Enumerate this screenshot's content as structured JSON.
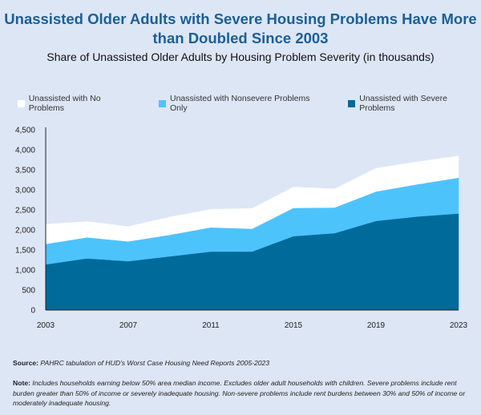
{
  "chart_data": {
    "type": "area",
    "stacked": true,
    "title": "Unassisted Older Adults with Severe Housing Problems Have More than Doubled Since 2003",
    "subtitle": "Share of Unassisted Older Adults by Housing Problem Severity (in thousands)",
    "x": [
      2003,
      2005,
      2007,
      2009,
      2011,
      2013,
      2015,
      2017,
      2019,
      2021,
      2023
    ],
    "xticks": [
      "2003",
      "2007",
      "2011",
      "2015",
      "2019",
      "2023"
    ],
    "yticks": [
      "0",
      "500",
      "1,000",
      "1,500",
      "2,000",
      "2,500",
      "3,000",
      "3,500",
      "4,000",
      "4,500"
    ],
    "ylim": [
      0,
      4500
    ],
    "grid": false,
    "legend_position": "top",
    "series": [
      {
        "name": "Unassisted with Severe Problems",
        "color": "#006a9a",
        "values": [
          1140,
          1290,
          1220,
          1340,
          1460,
          1460,
          1845,
          1920,
          2225,
          2335,
          2410
        ]
      },
      {
        "name": "Unassisted with Nonsevere Problems Only",
        "color": "#4dc3fc",
        "values": [
          510,
          525,
          495,
          537,
          605,
          570,
          705,
          640,
          735,
          805,
          895
        ]
      },
      {
        "name": "Unassisted with No Problems",
        "color": "#ffffff",
        "values": [
          490,
          395,
          370,
          443,
          450,
          505,
          520,
          465,
          580,
          560,
          540
        ]
      }
    ]
  },
  "legend_order": [
    2,
    1,
    0
  ],
  "footer": {
    "source_label": "Source:",
    "source_text": " PAHRC tabulation of HUD's Worst Case Housing Need Reports 2005-2023",
    "note_label": "Note:",
    "note_text": " Includes households earning below 50% area median income. Excludes older adult households with children. Severe problems include rent burden greater than 50% of income or severely inadequate housing. Non-severe problems include rent burdens between 30% and 50% of income or moderately inadequate housing."
  }
}
